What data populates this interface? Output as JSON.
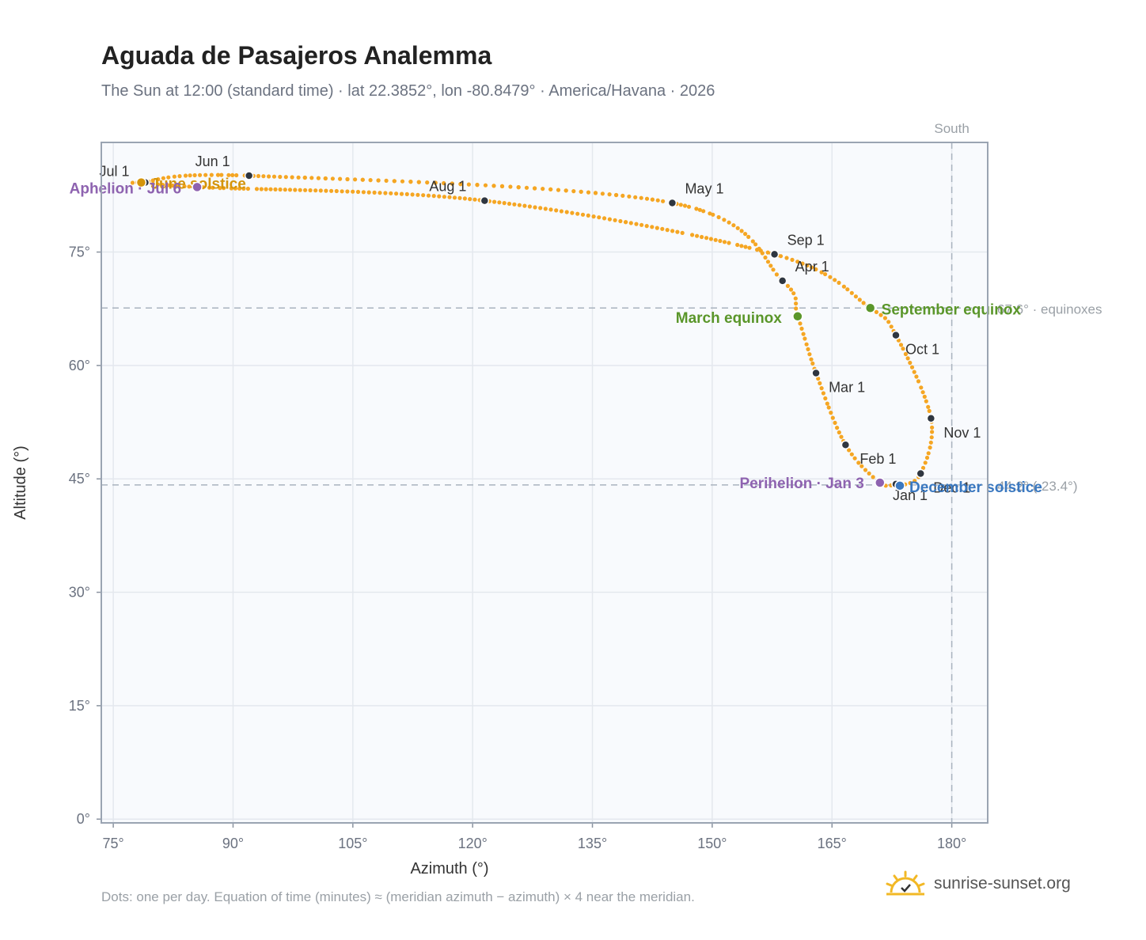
{
  "header": {
    "title": "Aguada de Pasajeros Analemma",
    "subtitle": "The Sun at 12:00 (standard time) · lat 22.3852°, lon -80.8479° · America/Havana · 2026"
  },
  "footer": {
    "note": "Dots: one per day. Equation of time (minutes) ≈ (meridian azimuth − azimuth) × 4 near the meridian.",
    "brand": "sunrise-sunset.org"
  },
  "colors": {
    "path": "#f5a623",
    "month_dot": "#2f3640",
    "solstice_june": "#d4940a",
    "solstice_december": "#3a78c0",
    "equinox": "#5a962a",
    "apsis": "#8e63b0",
    "grid": "#e4e8ee",
    "plot_bg": "#f8fafd"
  },
  "chart_data": {
    "type": "scatter",
    "xlabel": "Azimuth (°)",
    "ylabel": "Altitude (°)",
    "xlim": [
      73.5,
      184.5
    ],
    "ylim": [
      -0.5,
      89.5
    ],
    "x_ticks": [
      "75°",
      "90°",
      "105°",
      "120°",
      "135°",
      "150°",
      "165°",
      "180°"
    ],
    "x_tick_values": [
      75,
      90,
      105,
      120,
      135,
      150,
      165,
      180
    ],
    "y_ticks": [
      "0°",
      "15°",
      "30°",
      "45°",
      "60°",
      "75°"
    ],
    "y_tick_values": [
      0,
      15,
      30,
      45,
      60,
      75
    ],
    "grid": true,
    "south_label": "South",
    "south_azimuth": 180,
    "reference_lines": [
      {
        "altitude": 67.6,
        "label": "67.6° · equinoxes"
      },
      {
        "altitude": 44.2,
        "label": "44.2° (-23.4°)"
      }
    ],
    "analemma_anchors": [
      {
        "date": "Jan 1",
        "az": 173.0,
        "alt": 44.3
      },
      {
        "date": "Jan 3",
        "az": 171.0,
        "alt": 44.5
      },
      {
        "date": "Feb 1",
        "az": 166.7,
        "alt": 49.5
      },
      {
        "date": "Mar 1",
        "az": 163.0,
        "alt": 59.0
      },
      {
        "date": "Mar 20",
        "az": 160.7,
        "alt": 66.5
      },
      {
        "date": "Apr 1",
        "az": 158.8,
        "alt": 71.2
      },
      {
        "date": "May 1",
        "az": 145.0,
        "alt": 81.5
      },
      {
        "date": "Jun 1",
        "az": 92.0,
        "alt": 85.1
      },
      {
        "date": "Jun 21",
        "az": 78.5,
        "alt": 84.2
      },
      {
        "date": "Jul 1",
        "az": 79.0,
        "alt": 84.2
      },
      {
        "date": "Jul 6",
        "az": 85.5,
        "alt": 83.6
      },
      {
        "date": "Aug 1",
        "az": 121.5,
        "alt": 81.8
      },
      {
        "date": "Sep 1",
        "az": 157.8,
        "alt": 74.7
      },
      {
        "date": "Sep 23",
        "az": 169.8,
        "alt": 67.6
      },
      {
        "date": "Oct 1",
        "az": 173.0,
        "alt": 64.0
      },
      {
        "date": "Nov 1",
        "az": 177.4,
        "alt": 53.0
      },
      {
        "date": "Dec 1",
        "az": 176.1,
        "alt": 45.7
      },
      {
        "date": "Dec 21",
        "az": 173.5,
        "alt": 44.1
      }
    ],
    "month_markers": [
      {
        "label": "Jan 1",
        "az": 173.0,
        "alt": 44.3
      },
      {
        "label": "Feb 1",
        "az": 166.7,
        "alt": 49.5
      },
      {
        "label": "Mar 1",
        "az": 163.0,
        "alt": 59.0
      },
      {
        "label": "Apr 1",
        "az": 158.8,
        "alt": 71.2
      },
      {
        "label": "May 1",
        "az": 145.0,
        "alt": 81.5
      },
      {
        "label": "Jun 1",
        "az": 92.0,
        "alt": 85.1
      },
      {
        "label": "Jul 1",
        "az": 79.0,
        "alt": 84.2
      },
      {
        "label": "Aug 1",
        "az": 121.5,
        "alt": 81.8
      },
      {
        "label": "Sep 1",
        "az": 157.8,
        "alt": 74.7
      },
      {
        "label": "Oct 1",
        "az": 173.0,
        "alt": 64.0
      },
      {
        "label": "Nov 1",
        "az": 177.4,
        "alt": 53.0
      },
      {
        "label": "Dec 1",
        "az": 176.1,
        "alt": 45.7
      }
    ],
    "special_events": [
      {
        "label": "June solstice",
        "kind": "solstice_june",
        "az": 78.5,
        "alt": 84.2
      },
      {
        "label": "December solstice",
        "kind": "solstice_december",
        "az": 173.5,
        "alt": 44.1
      },
      {
        "label": "March equinox",
        "kind": "equinox",
        "az": 160.7,
        "alt": 66.5
      },
      {
        "label": "September equinox",
        "kind": "equinox",
        "az": 169.8,
        "alt": 67.6
      },
      {
        "label": "Perihelion · Jan 3",
        "kind": "apsis",
        "az": 171.0,
        "alt": 44.5
      },
      {
        "label": "Aphelion · Jul 6",
        "kind": "apsis",
        "az": 85.5,
        "alt": 83.6
      }
    ]
  }
}
